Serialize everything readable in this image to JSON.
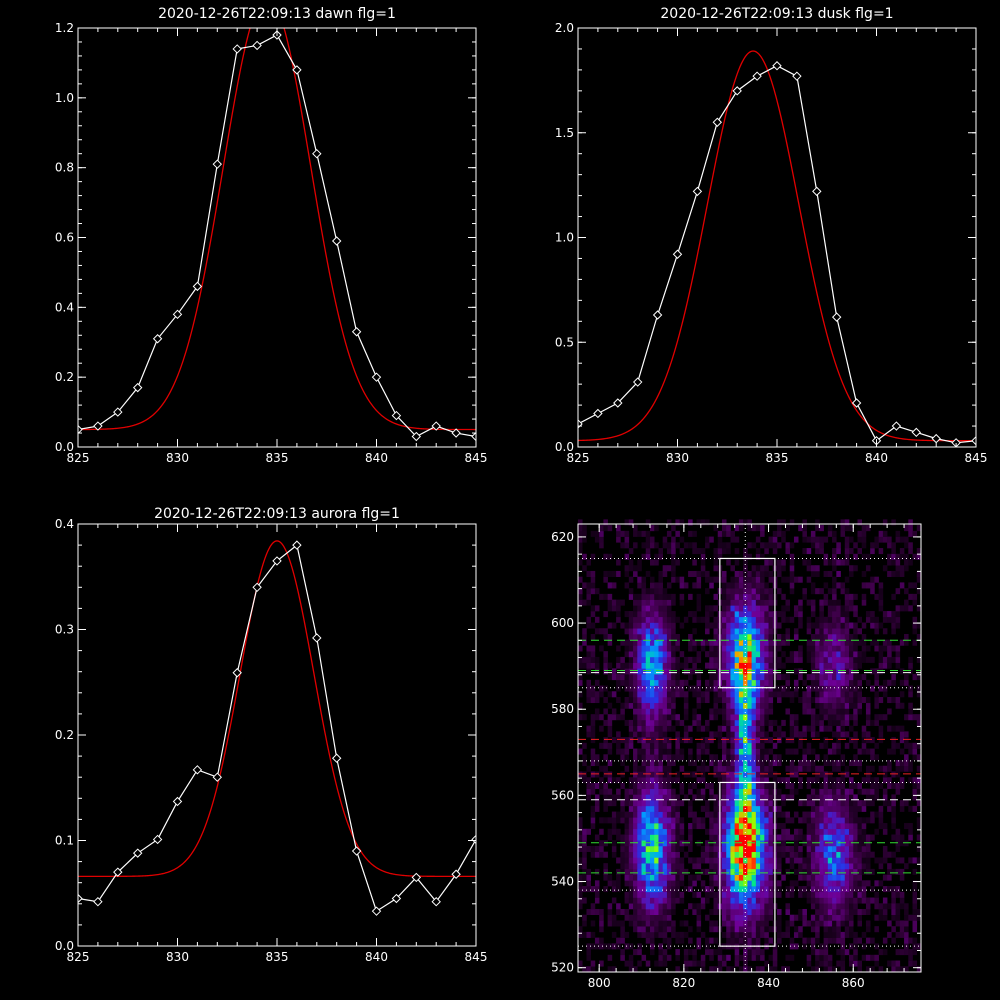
{
  "chart_data": [
    {
      "type": "line",
      "title": "2020-12-26T22:09:13 dawn flg=1",
      "xlim": [
        825,
        845
      ],
      "ylim": [
        0,
        1.2
      ],
      "xticks": [
        825,
        830,
        835,
        840,
        845
      ],
      "yticks": [
        0.0,
        0.2,
        0.4,
        0.6,
        0.8,
        1.0,
        1.2
      ],
      "ytick_format": 1,
      "series": [
        {
          "role": "data",
          "color": "#ffffff",
          "marker": "diamond",
          "x": [
            825,
            826,
            827,
            828,
            829,
            830,
            831,
            832,
            833,
            834,
            835,
            836,
            837,
            838,
            839,
            840,
            841,
            842,
            843,
            844,
            845
          ],
          "y": [
            0.05,
            0.06,
            0.1,
            0.17,
            0.31,
            0.38,
            0.46,
            0.81,
            1.14,
            1.15,
            1.18,
            1.08,
            0.84,
            0.59,
            0.33,
            0.2,
            0.09,
            0.03,
            0.06,
            0.04,
            0.03
          ]
        },
        {
          "role": "fit",
          "color": "#e00000",
          "model": {
            "amplitude": 1.24,
            "center": 834.5,
            "sigma": 2.2,
            "offset": 0.05
          }
        }
      ]
    },
    {
      "type": "line",
      "title": "2020-12-26T22:09:13 dusk flg=1",
      "xlim": [
        825,
        845
      ],
      "ylim": [
        0,
        2.0
      ],
      "xticks": [
        825,
        830,
        835,
        840,
        845
      ],
      "yticks": [
        0.0,
        0.5,
        1.0,
        1.5,
        2.0
      ],
      "ytick_format": 1,
      "series": [
        {
          "role": "data",
          "color": "#ffffff",
          "marker": "diamond",
          "x": [
            825,
            826,
            827,
            828,
            829,
            830,
            831,
            832,
            833,
            834,
            835,
            836,
            837,
            838,
            839,
            840,
            841,
            842,
            843,
            844,
            845
          ],
          "y": [
            0.11,
            0.16,
            0.21,
            0.31,
            0.63,
            0.92,
            1.22,
            1.55,
            1.7,
            1.77,
            1.82,
            1.77,
            1.22,
            0.62,
            0.21,
            0.03,
            0.1,
            0.07,
            0.04,
            0.02,
            0.03
          ]
        },
        {
          "role": "fit",
          "color": "#e00000",
          "model": {
            "amplitude": 1.86,
            "center": 833.8,
            "sigma": 2.3,
            "offset": 0.03
          }
        }
      ]
    },
    {
      "type": "line",
      "title": "2020-12-26T22:09:13 aurora flg=1",
      "xlim": [
        825,
        845
      ],
      "ylim": [
        0,
        0.4
      ],
      "xticks": [
        825,
        830,
        835,
        840,
        845
      ],
      "yticks": [
        0.0,
        0.1,
        0.2,
        0.3,
        0.4
      ],
      "ytick_format": 1,
      "series": [
        {
          "role": "data",
          "color": "#ffffff",
          "marker": "diamond",
          "x": [
            825,
            826,
            827,
            828,
            829,
            830,
            831,
            832,
            833,
            834,
            835,
            836,
            837,
            838,
            839,
            840,
            841,
            842,
            843,
            844,
            845
          ],
          "y": [
            0.045,
            0.042,
            0.07,
            0.088,
            0.101,
            0.137,
            0.167,
            0.16,
            0.259,
            0.34,
            0.365,
            0.38,
            0.292,
            0.178,
            0.09,
            0.033,
            0.045,
            0.065,
            0.042,
            0.068,
            0.101
          ]
        },
        {
          "role": "fit",
          "color": "#e00000",
          "model": {
            "amplitude": 0.318,
            "center": 835.0,
            "sigma": 1.85,
            "offset": 0.066
          }
        }
      ]
    },
    {
      "type": "heatmap",
      "title": "",
      "xlim": [
        795,
        876
      ],
      "ylim": [
        519,
        623
      ],
      "xticks": [
        800,
        820,
        840,
        860
      ],
      "yticks": [
        520,
        540,
        560,
        580,
        600,
        620
      ],
      "ytick_format": 0,
      "vertical_dotted_line_x": 834.5,
      "blobs": [
        {
          "x": 812.5,
          "y": 590,
          "sx": 2.5,
          "sy": 8,
          "amp": 0.55
        },
        {
          "x": 812.5,
          "y": 548,
          "sx": 2.8,
          "sy": 9,
          "amp": 0.6
        },
        {
          "x": 834.5,
          "y": 592,
          "sx": 3.0,
          "sy": 8,
          "amp": 0.75
        },
        {
          "x": 834.5,
          "y": 548,
          "sx": 3.2,
          "sy": 9,
          "amp": 1.0
        },
        {
          "x": 834.5,
          "y": 572,
          "sx": 1.4,
          "sy": 9,
          "amp": 0.55
        },
        {
          "x": 855.5,
          "y": 546,
          "sx": 3.0,
          "sy": 8,
          "amp": 0.42
        },
        {
          "x": 855.5,
          "y": 590,
          "sx": 3.0,
          "sy": 7,
          "amp": 0.22
        }
      ],
      "boxes": [
        {
          "x0": 828.5,
          "x1": 841.5,
          "y0": 585,
          "y1": 615,
          "color": "#ffffff"
        },
        {
          "x0": 828.5,
          "x1": 841.5,
          "y0": 525,
          "y1": 563,
          "color": "#ffffff"
        }
      ],
      "hlines": [
        {
          "y": 615,
          "color": "#ffffff",
          "style": "dotted"
        },
        {
          "y": 585,
          "color": "#ffffff",
          "style": "dotted"
        },
        {
          "y": 563,
          "color": "#ffffff",
          "style": "dotted"
        },
        {
          "y": 525,
          "color": "#ffffff",
          "style": "dotted"
        },
        {
          "y": 596,
          "color": "#33dd33",
          "style": "dashed"
        },
        {
          "y": 589,
          "color": "#33dd33",
          "style": "dashed"
        },
        {
          "y": 588.5,
          "color": "#ffffff",
          "style": "dashed"
        },
        {
          "y": 573,
          "color": "#ee2222",
          "style": "dashed"
        },
        {
          "y": 568,
          "color": "#ffffff",
          "style": "dotted"
        },
        {
          "y": 565,
          "color": "#ee2222",
          "style": "dashed"
        },
        {
          "y": 559,
          "color": "#ffffff",
          "style": "dashed"
        },
        {
          "y": 549,
          "color": "#33dd33",
          "style": "dashed"
        },
        {
          "y": 542,
          "color": "#33dd33",
          "style": "dashed"
        },
        {
          "y": 538,
          "color": "#ffffff",
          "style": "dotted"
        }
      ]
    }
  ]
}
